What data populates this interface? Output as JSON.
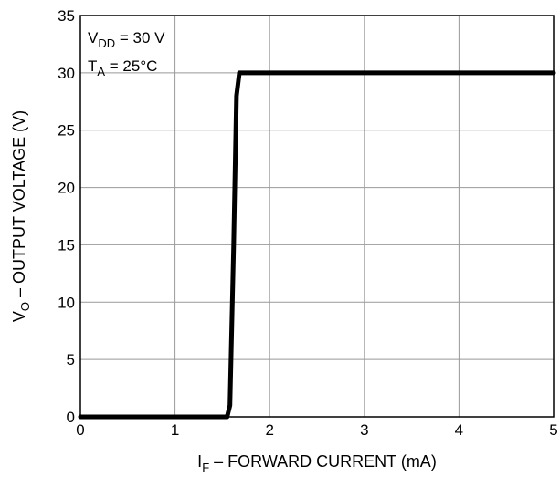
{
  "chart_data": {
    "type": "line",
    "title": "",
    "xlabel": {
      "main": "I",
      "sub": "F",
      "rest": " – FORWARD CURRENT (mA)"
    },
    "ylabel": {
      "main": "V",
      "sub": "O",
      "rest": " – OUTPUT VOLTAGE (V)"
    },
    "xlim": [
      0,
      5
    ],
    "ylim": [
      0,
      35
    ],
    "x_ticks": [
      0,
      1,
      2,
      3,
      4,
      5
    ],
    "x_tick_labels": [
      "0",
      "1",
      "2",
      "3",
      "4",
      "5"
    ],
    "y_ticks": [
      0,
      5,
      10,
      15,
      20,
      25,
      30,
      35
    ],
    "y_tick_labels": [
      "0",
      "5",
      "10",
      "15",
      "20",
      "25",
      "30",
      "35"
    ],
    "grid": true,
    "annotations": [
      {
        "main": "V",
        "sub": "DD",
        "rest": " = 30 V"
      },
      {
        "main": "T",
        "sub": "A",
        "rest": " = 25°C"
      }
    ],
    "series": [
      {
        "x": [
          0,
          1.55,
          1.58,
          1.62,
          1.65,
          1.68,
          5
        ],
        "y": [
          0,
          0,
          1,
          15,
          28,
          30,
          30
        ]
      }
    ],
    "colors": {
      "line": "#000000",
      "grid": "#999999",
      "frame": "#000000"
    }
  }
}
